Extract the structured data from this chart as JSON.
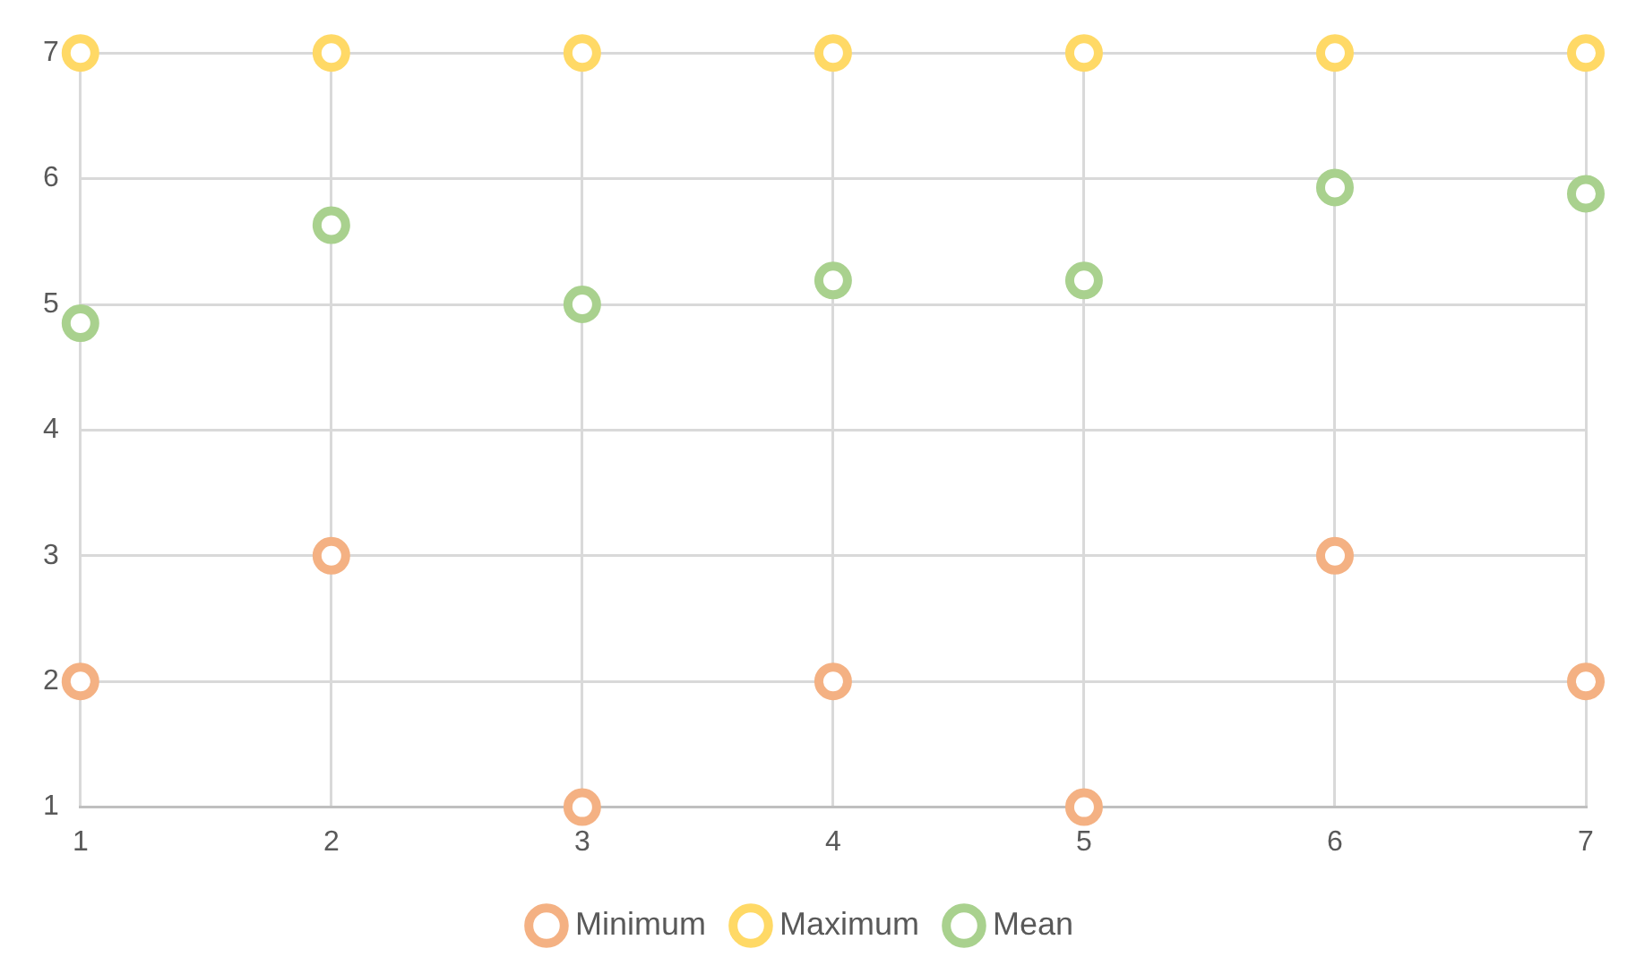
{
  "chart_data": {
    "type": "scatter",
    "x": [
      1,
      2,
      3,
      4,
      5,
      6,
      7
    ],
    "series": [
      {
        "name": "Minimum",
        "color": "#f4b183",
        "values": [
          2,
          3,
          1,
          2,
          1,
          3,
          2
        ]
      },
      {
        "name": "Maximum",
        "color": "#ffd966",
        "values": [
          7,
          7,
          7,
          7,
          7,
          7,
          7
        ]
      },
      {
        "name": "Mean",
        "color": "#a9d18e",
        "values": [
          4.85,
          5.63,
          5.0,
          5.19,
          5.19,
          5.93,
          5.88
        ]
      }
    ],
    "xlim": [
      1,
      7
    ],
    "xticks": [
      1,
      2,
      3,
      4,
      5,
      6,
      7
    ],
    "ylim": [
      1,
      7
    ],
    "yticks": [
      1,
      2,
      3,
      4,
      5,
      6,
      7
    ],
    "grid": true,
    "legend": "bottom",
    "marker": "circle"
  }
}
